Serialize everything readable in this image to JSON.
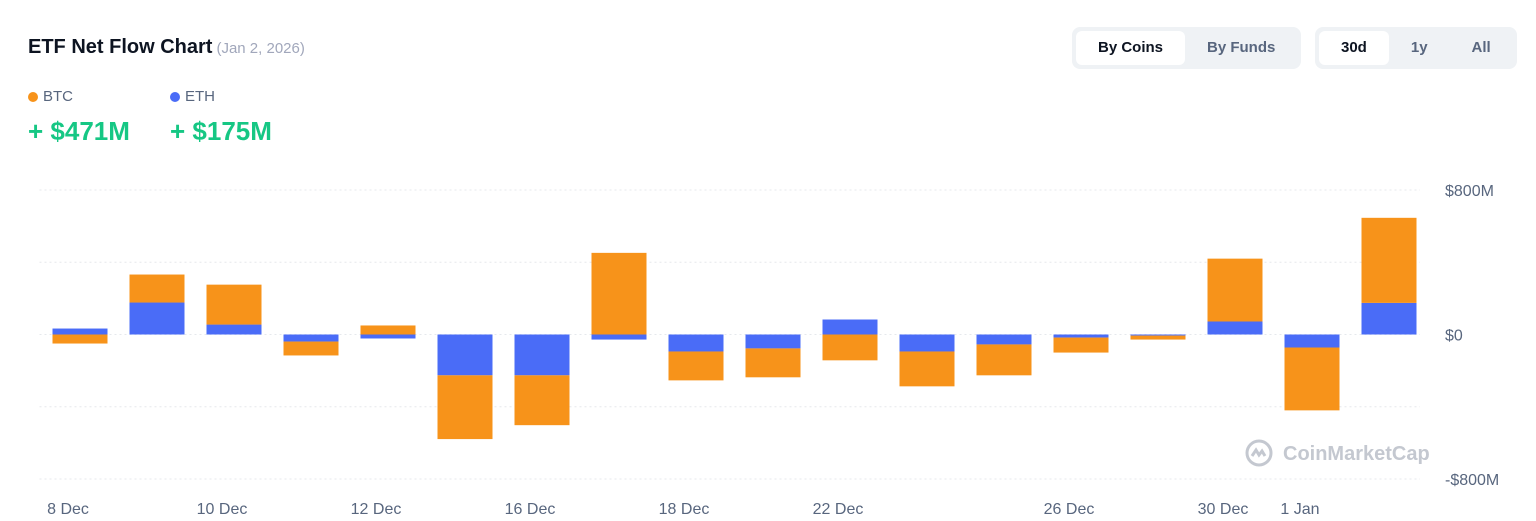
{
  "header": {
    "title": "ETF Net Flow Chart",
    "date": "(Jan 2, 2026)"
  },
  "controls": {
    "view": [
      "By Coins",
      "By Funds"
    ],
    "range": [
      "30d",
      "1y",
      "All"
    ]
  },
  "summary": [
    "+ $471M",
    "+ $175M"
  ],
  "watermark": "CoinMarketCap",
  "chart_data": {
    "type": "stacked_bar",
    "categories": [
      "8 Dec",
      null,
      "10 Dec",
      null,
      "12 Dec",
      null,
      "16 Dec",
      null,
      "18 Dec",
      null,
      "22 Dec",
      null,
      null,
      "26 Dec",
      null,
      "30 Dec",
      "1 Jan",
      null
    ],
    "series": [
      {
        "name": "BTC",
        "color": "#f7931a",
        "values": [
          -50,
          155,
          221,
          -77,
          50,
          -353,
          -276,
          452,
          -160,
          -160,
          -143,
          -193,
          -171,
          -83,
          -22,
          348,
          -348,
          471
        ]
      },
      {
        "name": "ETH",
        "color": "#4a6cf7",
        "values": [
          33,
          177,
          55,
          -39,
          -22,
          -226,
          -226,
          -28,
          -94,
          -77,
          83,
          -94,
          -55,
          -17,
          -6,
          72,
          -72,
          175
        ]
      }
    ],
    "ylim": [
      -800,
      800
    ],
    "yticks": [
      {
        "value": 800,
        "label": "$800M"
      },
      {
        "value": 0,
        "label": "$0"
      },
      {
        "value": -800,
        "label": "-$800M"
      }
    ],
    "grid": true
  }
}
